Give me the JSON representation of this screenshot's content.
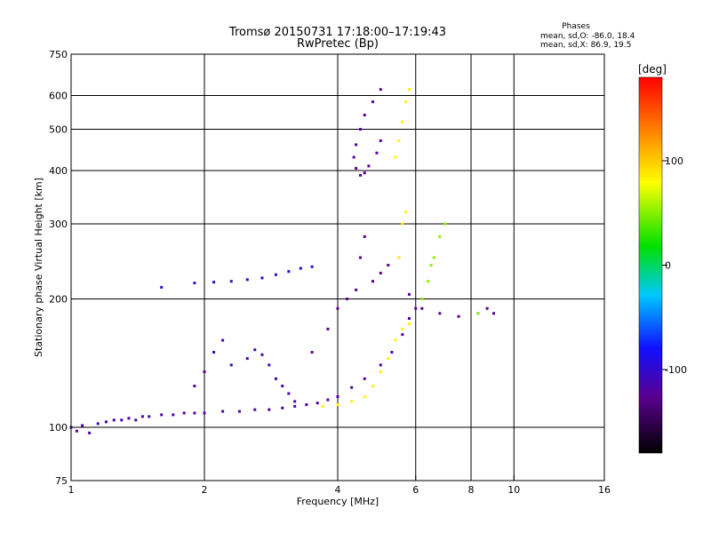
{
  "chart_data": {
    "type": "scatter",
    "title": "Tromsø 20150731 17:18:00–17:19:43",
    "subtitle": "RwPretec (Bp)",
    "xlabel": "Frequency [MHz]",
    "ylabel": "Stationary phase Virtual Height [km]",
    "x_scale": "log",
    "y_scale": "log",
    "xlim": [
      1,
      16
    ],
    "ylim": [
      75,
      750
    ],
    "xticks": [
      1,
      2,
      4,
      6,
      8,
      10,
      16
    ],
    "yticks": [
      75,
      100,
      200,
      300,
      400,
      500,
      600,
      750
    ],
    "grid": true,
    "stats": {
      "heading": "Phases",
      "line1": "mean, sd,O: -86.0, 18.4",
      "line2": "mean, sd,X:  86.9, 19.5"
    },
    "colorbar": {
      "label": "[deg]",
      "range": [
        -180,
        180
      ],
      "ticks": [
        100,
        0,
        -100
      ]
    },
    "series": [
      {
        "phase": -120,
        "points": [
          [
            1.0,
            100
          ],
          [
            1.03,
            98
          ],
          [
            1.06,
            101
          ],
          [
            1.1,
            97
          ],
          [
            1.15,
            102
          ],
          [
            1.2,
            103
          ],
          [
            1.25,
            104
          ],
          [
            1.3,
            104
          ],
          [
            1.35,
            105
          ],
          [
            1.4,
            104
          ],
          [
            1.45,
            106
          ],
          [
            1.5,
            106
          ],
          [
            1.6,
            107
          ],
          [
            1.7,
            107
          ],
          [
            1.8,
            108
          ],
          [
            1.9,
            108
          ],
          [
            2.0,
            108
          ],
          [
            2.2,
            109
          ],
          [
            2.4,
            109
          ],
          [
            2.6,
            110
          ],
          [
            2.8,
            110
          ],
          [
            3.0,
            111
          ],
          [
            3.2,
            112
          ],
          [
            3.4,
            113
          ],
          [
            3.6,
            114
          ],
          [
            3.8,
            116
          ],
          [
            4.0,
            118
          ],
          [
            4.3,
            124
          ],
          [
            4.6,
            130
          ],
          [
            5.0,
            140
          ],
          [
            5.3,
            150
          ],
          [
            5.6,
            165
          ],
          [
            5.8,
            180
          ],
          [
            6.0,
            190
          ]
        ]
      },
      {
        "phase": -105,
        "points": [
          [
            1.6,
            213
          ],
          [
            1.9,
            218
          ],
          [
            2.1,
            219
          ],
          [
            2.3,
            220
          ],
          [
            2.5,
            222
          ],
          [
            2.7,
            224
          ],
          [
            2.9,
            228
          ],
          [
            3.1,
            232
          ],
          [
            3.3,
            236
          ],
          [
            3.5,
            238
          ]
        ]
      },
      {
        "phase": -115,
        "points": [
          [
            1.9,
            125
          ],
          [
            2.0,
            135
          ],
          [
            2.1,
            150
          ],
          [
            2.2,
            160
          ],
          [
            2.3,
            140
          ],
          [
            2.5,
            145
          ],
          [
            2.6,
            152
          ],
          [
            2.7,
            148
          ],
          [
            2.8,
            140
          ],
          [
            2.9,
            130
          ],
          [
            3.0,
            125
          ],
          [
            3.1,
            120
          ],
          [
            3.2,
            115
          ]
        ]
      },
      {
        "phase": -130,
        "points": [
          [
            3.5,
            150
          ],
          [
            3.8,
            170
          ],
          [
            4.0,
            190
          ],
          [
            4.2,
            200
          ],
          [
            4.4,
            210
          ],
          [
            4.5,
            250
          ],
          [
            4.6,
            280
          ],
          [
            4.8,
            220
          ],
          [
            5.0,
            230
          ],
          [
            5.2,
            240
          ],
          [
            5.5,
            250
          ],
          [
            5.8,
            205
          ],
          [
            6.2,
            190
          ],
          [
            6.8,
            185
          ],
          [
            7.5,
            182
          ],
          [
            8.3,
            185
          ],
          [
            8.7,
            190
          ],
          [
            9.0,
            185
          ]
        ]
      },
      {
        "phase": -125,
        "points": [
          [
            4.5,
            390
          ],
          [
            4.4,
            405
          ],
          [
            4.35,
            430
          ],
          [
            4.4,
            460
          ],
          [
            4.5,
            500
          ],
          [
            4.6,
            540
          ],
          [
            4.8,
            580
          ],
          [
            5.0,
            620
          ],
          [
            4.6,
            395
          ],
          [
            4.7,
            410
          ],
          [
            4.9,
            440
          ],
          [
            5.0,
            470
          ]
        ]
      },
      {
        "phase": 85,
        "points": [
          [
            3.7,
            112
          ],
          [
            4.0,
            113
          ],
          [
            4.3,
            115
          ],
          [
            4.6,
            118
          ],
          [
            4.8,
            125
          ],
          [
            5.0,
            135
          ],
          [
            5.2,
            145
          ],
          [
            5.4,
            160
          ],
          [
            5.6,
            170
          ],
          [
            5.8,
            175
          ],
          [
            5.5,
            250
          ],
          [
            5.6,
            300
          ],
          [
            5.7,
            320
          ],
          [
            5.4,
            430
          ],
          [
            5.5,
            470
          ],
          [
            5.6,
            520
          ],
          [
            5.7,
            580
          ],
          [
            5.8,
            620
          ]
        ]
      },
      {
        "phase": 45,
        "points": [
          [
            6.2,
            200
          ],
          [
            6.4,
            220
          ],
          [
            6.6,
            250
          ],
          [
            6.8,
            280
          ],
          [
            7.0,
            300
          ],
          [
            6.5,
            240
          ],
          [
            8.3,
            185
          ]
        ]
      }
    ]
  }
}
